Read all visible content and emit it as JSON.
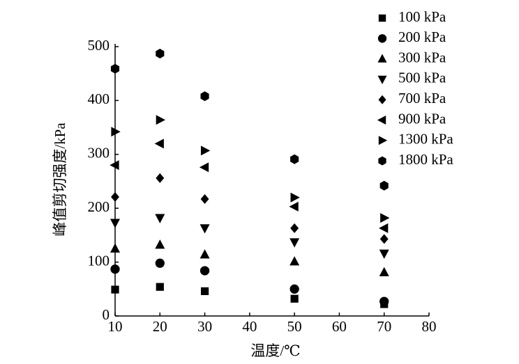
{
  "chart_data": {
    "type": "scatter",
    "x_label": "温度/℃",
    "y_label": "峰值剪切强度/kPa",
    "xlim": [
      10,
      80
    ],
    "xticks": [
      10,
      20,
      30,
      40,
      50,
      60,
      70,
      80
    ],
    "ylim": [
      0,
      500
    ],
    "yticks": [
      0,
      100,
      200,
      300,
      400,
      500
    ],
    "grid": false,
    "legend": "upper right",
    "series": [
      {
        "name": "100 kPa",
        "color": "#000000",
        "marker": "square",
        "x": [
          10,
          20,
          30,
          50,
          70
        ],
        "values": [
          49,
          54,
          46,
          32,
          22
        ]
      },
      {
        "name": "200 kPa",
        "color": "#000000",
        "marker": "circle",
        "x": [
          10,
          20,
          30,
          50,
          70
        ],
        "values": [
          87,
          98,
          84,
          50,
          27
        ]
      },
      {
        "name": "300 kPa",
        "color": "#000000",
        "marker": "triangle-up",
        "x": [
          10,
          20,
          30,
          50,
          70
        ],
        "values": [
          125,
          132,
          114,
          101,
          81
        ]
      },
      {
        "name": "500 kPa",
        "color": "#000000",
        "marker": "triangle-down",
        "x": [
          10,
          20,
          30,
          50,
          70
        ],
        "values": [
          173,
          182,
          163,
          137,
          116
        ]
      },
      {
        "name": "700 kPa",
        "color": "#000000",
        "marker": "diamond",
        "x": [
          10,
          20,
          30,
          50,
          70
        ],
        "values": [
          221,
          256,
          217,
          163,
          143
        ]
      },
      {
        "name": "900 kPa",
        "color": "#000000",
        "marker": "triangle-left",
        "x": [
          10,
          20,
          30,
          50,
          70
        ],
        "values": [
          280,
          320,
          276,
          203,
          163
        ]
      },
      {
        "name": "1300 kPa",
        "color": "#000000",
        "marker": "triangle-right",
        "x": [
          10,
          20,
          30,
          50,
          70
        ],
        "values": [
          342,
          364,
          307,
          220,
          182
        ]
      },
      {
        "name": "1800 kPa",
        "color": "#000000",
        "marker": "hexagon",
        "x": [
          10,
          20,
          30,
          50,
          70
        ],
        "values": [
          459,
          487,
          408,
          291,
          242
        ]
      }
    ]
  }
}
